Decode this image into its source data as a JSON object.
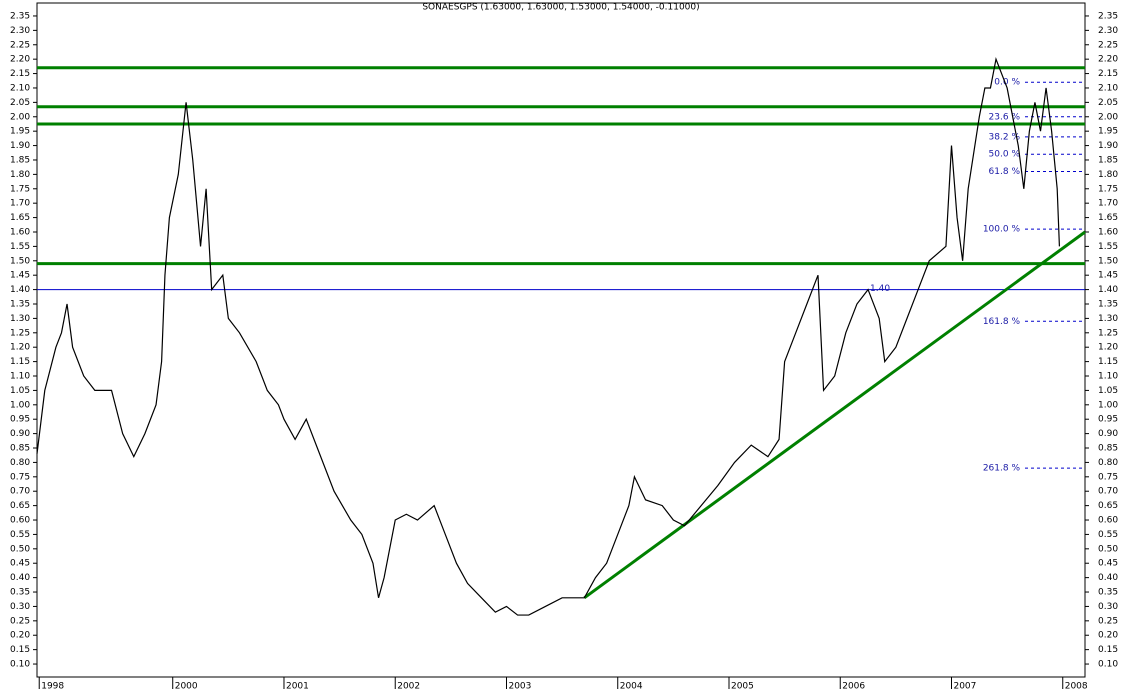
{
  "chart_data": {
    "type": "line",
    "title": "SONAESGPS (1.63000, 1.63000, 1.53000, 1.54000, -0.11000)",
    "xlim": [
      1998.78,
      2008.2
    ],
    "xticks": [
      {
        "value": 1998.8,
        "label": "1998"
      },
      2000,
      2001,
      2002,
      2003,
      2004,
      2005,
      2006,
      2007,
      2008
    ],
    "ylim": [
      0.055,
      2.395
    ],
    "yticks": [
      {
        "value": 0.1,
        "label": "0.10"
      },
      {
        "value": 0.15,
        "label": "0.15"
      },
      {
        "value": 0.2,
        "label": "0.20"
      },
      {
        "value": 0.25,
        "label": "0.25"
      },
      {
        "value": 0.3,
        "label": "0.30"
      },
      {
        "value": 0.35,
        "label": "0.35"
      },
      {
        "value": 0.4,
        "label": "0.40"
      },
      {
        "value": 0.45,
        "label": "0.45"
      },
      {
        "value": 0.5,
        "label": "0.50"
      },
      {
        "value": 0.55,
        "label": "0.55"
      },
      {
        "value": 0.6,
        "label": "0.60"
      },
      {
        "value": 0.65,
        "label": "0.65"
      },
      {
        "value": 0.7,
        "label": "0.70"
      },
      {
        "value": 0.75,
        "label": "0.75"
      },
      {
        "value": 0.8,
        "label": "0.80"
      },
      {
        "value": 0.85,
        "label": "0.85"
      },
      {
        "value": 0.9,
        "label": "0.90"
      },
      {
        "value": 0.95,
        "label": "0.95"
      },
      {
        "value": 1.0,
        "label": "1.00"
      },
      {
        "value": 1.05,
        "label": "1.05"
      },
      {
        "value": 1.1,
        "label": "1.10"
      },
      {
        "value": 1.15,
        "label": "1.15"
      },
      {
        "value": 1.2,
        "label": "1.20"
      },
      {
        "value": 1.25,
        "label": "1.25"
      },
      {
        "value": 1.3,
        "label": "1.30"
      },
      {
        "value": 1.35,
        "label": "1.35"
      },
      {
        "value": 1.4,
        "label": "1.40"
      },
      {
        "value": 1.45,
        "label": "1.45"
      },
      {
        "value": 1.5,
        "label": "1.50"
      },
      {
        "value": 1.55,
        "label": "1.55"
      },
      {
        "value": 1.6,
        "label": "1.60"
      },
      {
        "value": 1.65,
        "label": "1.65"
      },
      {
        "value": 1.7,
        "label": "1.70"
      },
      {
        "value": 1.75,
        "label": "1.75"
      },
      {
        "value": 1.8,
        "label": "1.80"
      },
      {
        "value": 1.85,
        "label": "1.85"
      },
      {
        "value": 1.9,
        "label": "1.90"
      },
      {
        "value": 1.95,
        "label": "1.95"
      },
      {
        "value": 2.0,
        "label": "2.00"
      },
      {
        "value": 2.05,
        "label": "2.05"
      },
      {
        "value": 2.1,
        "label": "2.10"
      },
      {
        "value": 2.15,
        "label": "2.15"
      },
      {
        "value": 2.2,
        "label": "2.20"
      },
      {
        "value": 2.25,
        "label": "2.25"
      },
      {
        "value": 2.3,
        "label": "2.30"
      },
      {
        "value": 2.35,
        "label": "2.35"
      }
    ],
    "series": [
      {
        "name": "SONAESGPS",
        "color": "#000000",
        "x": [
          1998.78,
          1998.85,
          1998.95,
          1999.0,
          1999.05,
          1999.1,
          1999.2,
          1999.3,
          1999.45,
          1999.55,
          1999.65,
          1999.75,
          1999.85,
          1999.9,
          1999.93,
          1999.97,
          2000.05,
          2000.12,
          2000.18,
          2000.25,
          2000.3,
          2000.35,
          2000.45,
          2000.5,
          2000.6,
          2000.75,
          2000.85,
          2000.95,
          2001.0,
          2001.1,
          2001.2,
          2001.3,
          2001.45,
          2001.6,
          2001.7,
          2001.8,
          2001.85,
          2001.9,
          2002.0,
          2002.1,
          2002.2,
          2002.35,
          2002.45,
          2002.55,
          2002.65,
          2002.8,
          2002.9,
          2003.0,
          2003.1,
          2003.2,
          2003.35,
          2003.5,
          2003.7,
          2003.8,
          2003.9,
          2004.0,
          2004.1,
          2004.15,
          2004.25,
          2004.4,
          2004.5,
          2004.6,
          2004.75,
          2004.9,
          2005.05,
          2005.2,
          2005.35,
          2005.45,
          2005.5,
          2005.6,
          2005.7,
          2005.8,
          2005.85,
          2005.95,
          2006.05,
          2006.15,
          2006.25,
          2006.35,
          2006.4,
          2006.5,
          2006.6,
          2006.7,
          2006.8,
          2006.95,
          2007.0,
          2007.05,
          2007.1,
          2007.15,
          2007.25,
          2007.3,
          2007.35,
          2007.4,
          2007.5,
          2007.6,
          2007.65,
          2007.7,
          2007.75,
          2007.8,
          2007.85,
          2007.9,
          2007.95,
          2007.97
        ],
        "values": [
          0.83,
          1.05,
          1.2,
          1.25,
          1.35,
          1.2,
          1.1,
          1.05,
          1.05,
          0.9,
          0.82,
          0.9,
          1.0,
          1.15,
          1.45,
          1.65,
          1.8,
          2.05,
          1.85,
          1.55,
          1.75,
          1.4,
          1.45,
          1.3,
          1.25,
          1.15,
          1.05,
          1.0,
          0.95,
          0.88,
          0.95,
          0.85,
          0.7,
          0.6,
          0.55,
          0.45,
          0.33,
          0.4,
          0.6,
          0.62,
          0.6,
          0.65,
          0.55,
          0.45,
          0.38,
          0.32,
          0.28,
          0.3,
          0.27,
          0.27,
          0.3,
          0.33,
          0.33,
          0.4,
          0.45,
          0.55,
          0.65,
          0.75,
          0.67,
          0.65,
          0.6,
          0.58,
          0.65,
          0.72,
          0.8,
          0.86,
          0.82,
          0.88,
          1.15,
          1.25,
          1.35,
          1.45,
          1.05,
          1.1,
          1.25,
          1.35,
          1.4,
          1.3,
          1.15,
          1.2,
          1.3,
          1.4,
          1.5,
          1.55,
          1.9,
          1.65,
          1.5,
          1.75,
          2.0,
          2.1,
          2.1,
          2.2,
          2.1,
          1.9,
          1.75,
          1.95,
          2.05,
          1.95,
          2.1,
          1.95,
          1.75,
          1.55
        ]
      }
    ],
    "hlines": [
      {
        "value": 2.17,
        "color": "#008000"
      },
      {
        "value": 2.035,
        "color": "#008000"
      },
      {
        "value": 1.975,
        "color": "#008000"
      },
      {
        "value": 1.49,
        "color": "#008000"
      },
      {
        "value": 1.4,
        "label": "1.40",
        "color": "#0000cc"
      }
    ],
    "trendline": {
      "x": [
        2003.7,
        2008.2
      ],
      "y": [
        0.33,
        1.6
      ],
      "color": "#008000"
    },
    "fib_levels": [
      {
        "label": "0.0 %",
        "value": 2.12
      },
      {
        "label": "23.6 %",
        "value": 2.0
      },
      {
        "label": "38.2 %",
        "value": 1.93
      },
      {
        "label": "50.0 %",
        "value": 1.87
      },
      {
        "label": "61.8 %",
        "value": 1.81
      },
      {
        "label": "100.0 %",
        "value": 1.61
      },
      {
        "label": "161.8 %",
        "value": 1.29
      },
      {
        "label": "261.8 %",
        "value": 0.78
      }
    ]
  }
}
